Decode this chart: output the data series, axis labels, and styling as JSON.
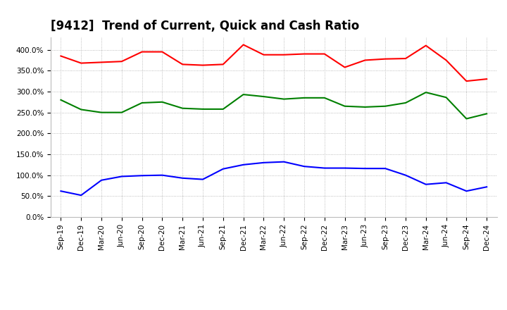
{
  "title": "[9412]  Trend of Current, Quick and Cash Ratio",
  "x_labels": [
    "Sep-19",
    "Dec-19",
    "Mar-20",
    "Jun-20",
    "Sep-20",
    "Dec-20",
    "Mar-21",
    "Jun-21",
    "Sep-21",
    "Dec-21",
    "Mar-22",
    "Jun-22",
    "Sep-22",
    "Dec-22",
    "Mar-23",
    "Jun-23",
    "Sep-23",
    "Dec-23",
    "Mar-24",
    "Jun-24",
    "Sep-24",
    "Dec-24"
  ],
  "current_ratio": [
    3.85,
    3.68,
    3.7,
    3.72,
    3.95,
    3.95,
    3.65,
    3.63,
    3.65,
    4.12,
    3.88,
    3.88,
    3.9,
    3.9,
    3.58,
    3.75,
    3.78,
    3.79,
    4.1,
    3.75,
    3.25,
    3.3
  ],
  "quick_ratio": [
    2.8,
    2.57,
    2.5,
    2.5,
    2.73,
    2.75,
    2.6,
    2.58,
    2.58,
    2.93,
    2.88,
    2.82,
    2.85,
    2.85,
    2.65,
    2.63,
    2.65,
    2.73,
    2.98,
    2.86,
    2.35,
    2.47
  ],
  "cash_ratio": [
    0.62,
    0.52,
    0.88,
    0.97,
    0.99,
    1.0,
    0.93,
    0.9,
    1.15,
    1.25,
    1.3,
    1.32,
    1.21,
    1.17,
    1.17,
    1.16,
    1.16,
    1.0,
    0.78,
    0.82,
    0.62,
    0.72
  ],
  "current_color": "#FF0000",
  "quick_color": "#008000",
  "cash_color": "#0000FF",
  "ylim": [
    0,
    4.3
  ],
  "yticks": [
    0.0,
    0.5,
    1.0,
    1.5,
    2.0,
    2.5,
    3.0,
    3.5,
    4.0
  ],
  "line_width": 1.5,
  "background_color": "#FFFFFF",
  "grid_color": "#AAAAAA",
  "title_fontsize": 12,
  "tick_fontsize": 7.5,
  "legend_fontsize": 9
}
